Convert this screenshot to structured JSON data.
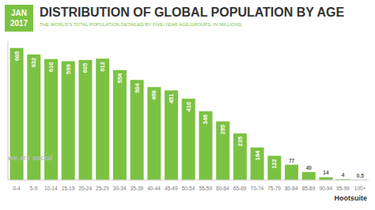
{
  "chart_data": {
    "type": "bar",
    "title": "DISTRIBUTION OF GLOBAL POPULATION BY AGE",
    "subtitle": "THE WORLD'S TOTAL POPULATION DETAILED BY FIVE-YEAR AGE GROUPS, IN MILLIONS",
    "annotations": [
      "JAN",
      "2017",
      "Hootsuite",
      "we are social"
    ],
    "categories": [
      "0-4",
      "5-9",
      "10-14",
      "15-19",
      "20-24",
      "25-29",
      "30-34",
      "35-39",
      "40-44",
      "45-49",
      "50-54",
      "55-59",
      "60-64",
      "65-69",
      "70-74",
      "75-79",
      "80-84",
      "85-89",
      "90-94",
      "95-99",
      "100+"
    ],
    "values": [
      665,
      632,
      610,
      599,
      605,
      612,
      554,
      504,
      468,
      451,
      410,
      346,
      295,
      235,
      164,
      122,
      77,
      40,
      14,
      4,
      0.5
    ],
    "color": "#7cc242",
    "ylim": [
      0,
      700
    ],
    "data_labels": true,
    "tick_labels": "x",
    "grid": false
  }
}
